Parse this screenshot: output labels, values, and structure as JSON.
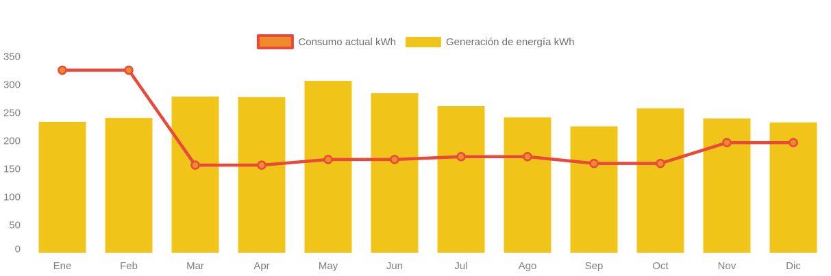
{
  "chart_data": {
    "type": "bar",
    "title": "",
    "xlabel": "",
    "ylabel": "",
    "categories": [
      "Ene",
      "Feb",
      "Mar",
      "Apr",
      "May",
      "Jun",
      "Jul",
      "Ago",
      "Sep",
      "Oct",
      "Nov",
      "Dic"
    ],
    "series": [
      {
        "name": "Consumo actual kWh",
        "type": "line",
        "color": "#E8493B",
        "marker_color": "#EF8B2D",
        "values": [
          325,
          325,
          156,
          156,
          166,
          166,
          171,
          171,
          159,
          159,
          196,
          196
        ]
      },
      {
        "name": "Generación de energía kWh",
        "type": "bar",
        "color": "#F0C419",
        "values": [
          233,
          240,
          278,
          277,
          306,
          284,
          261,
          241,
          225,
          257,
          239,
          232
        ]
      }
    ],
    "ylim": [
      0,
      350
    ],
    "yticks": [
      0,
      50,
      100,
      150,
      200,
      250,
      300,
      350
    ],
    "grid": false,
    "legend_position": "top-center",
    "axis_label_color": "#7E7E7E",
    "legend_text_color": "#6F6F6F"
  }
}
